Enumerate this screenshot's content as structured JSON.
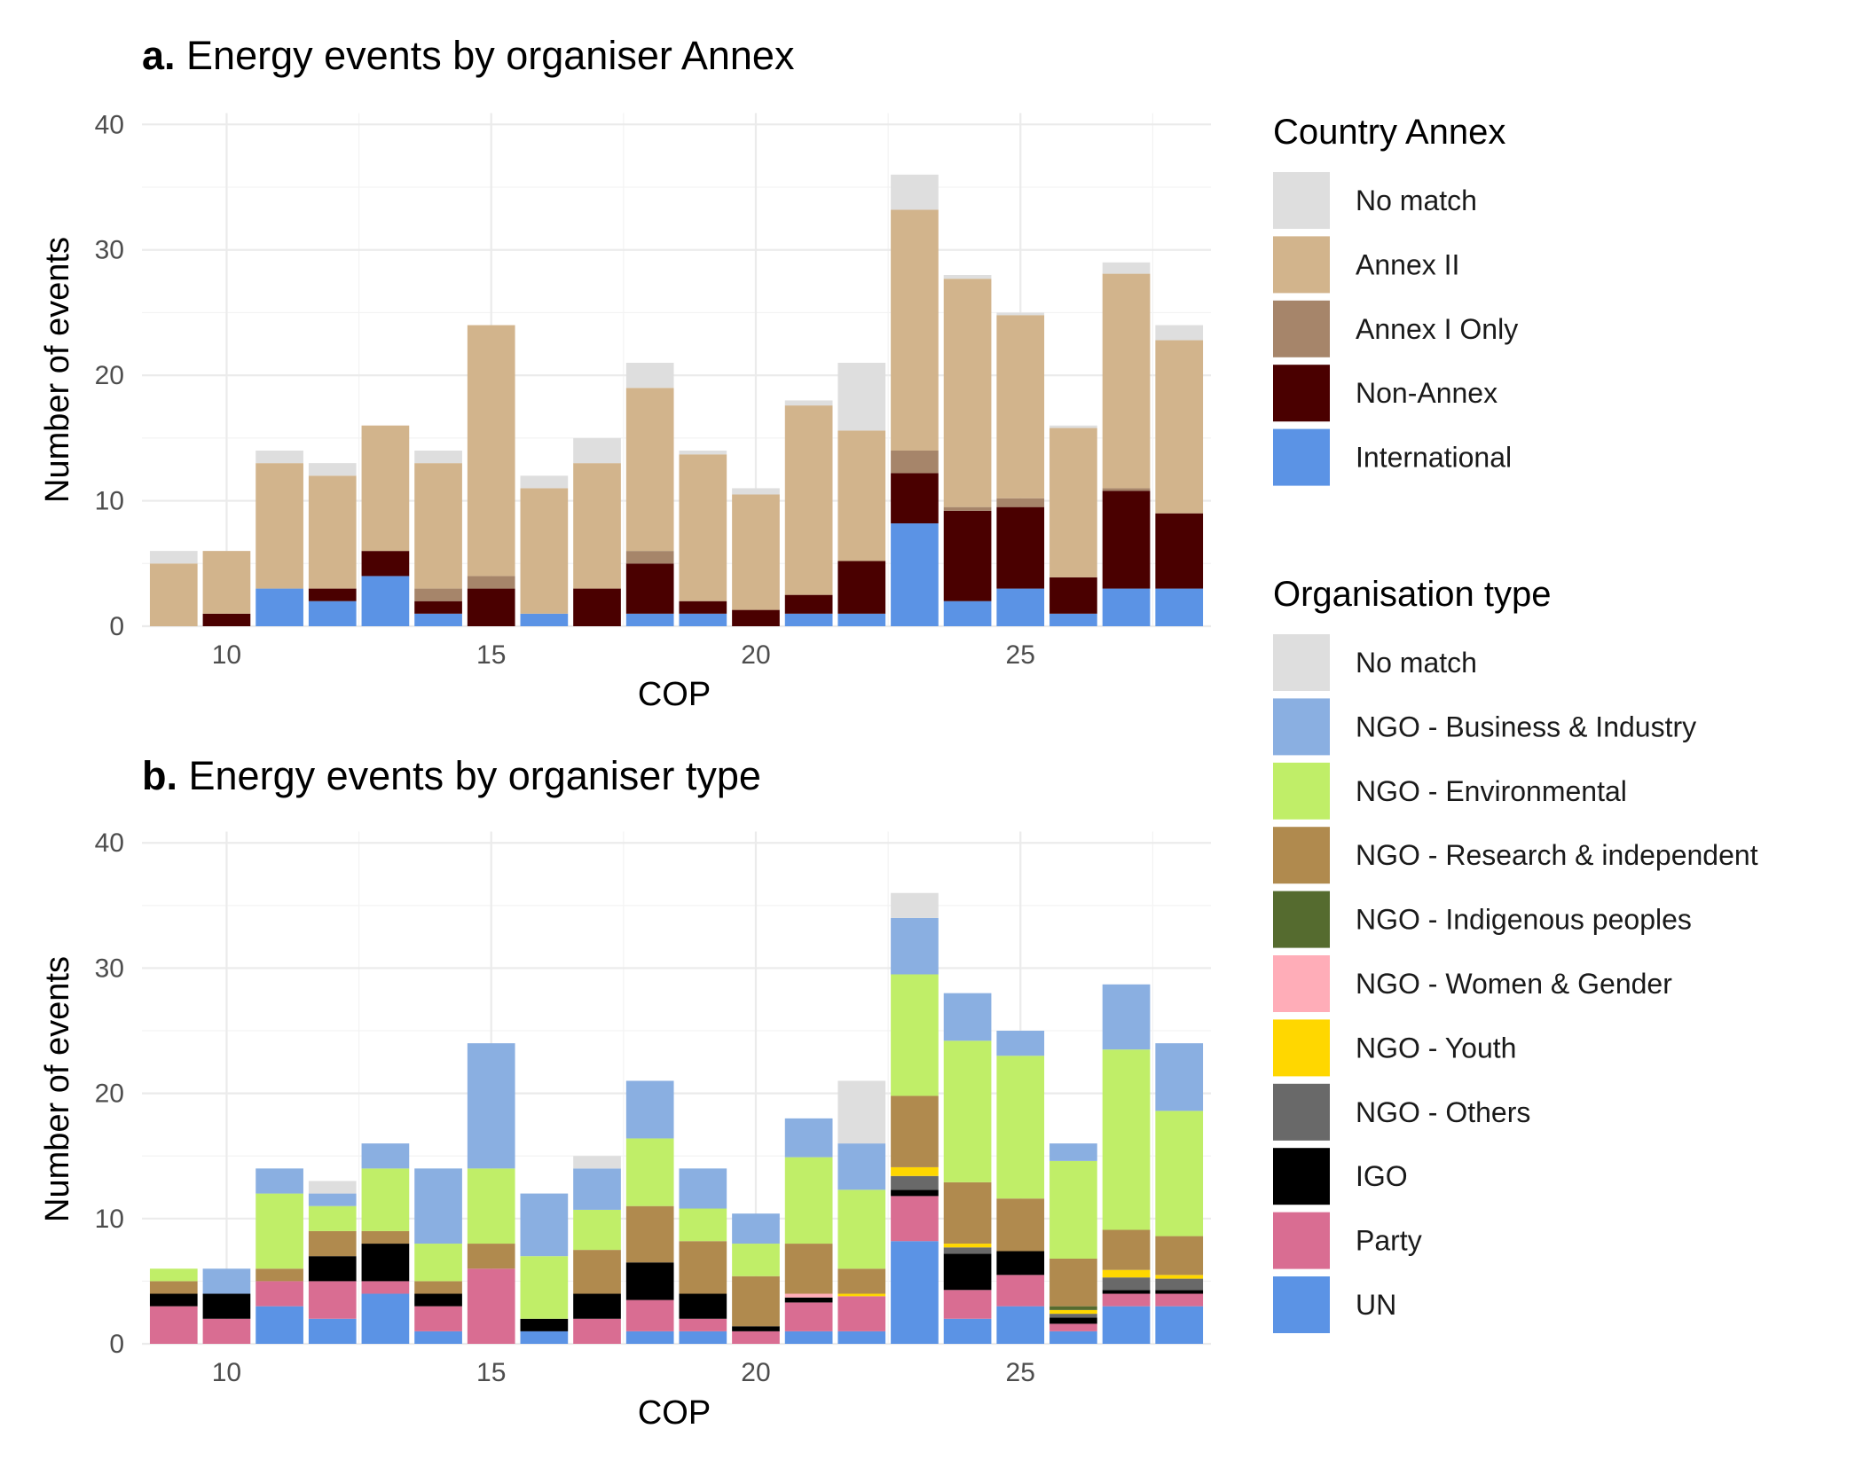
{
  "chart_data": [
    {
      "type": "bar",
      "stacked": true,
      "panel_label": "a.",
      "title": "Energy events by organiser Annex",
      "xlabel": "COP",
      "ylabel": "Number of events",
      "x": [
        9,
        10,
        11,
        12,
        13,
        14,
        15,
        16,
        17,
        18,
        19,
        20,
        21,
        22,
        23,
        24,
        25,
        26,
        27,
        28
      ],
      "xticks": [
        10,
        15,
        20,
        25
      ],
      "xlim": [
        8.4,
        28.6
      ],
      "yticks": [
        0,
        10,
        20,
        30,
        40
      ],
      "ylim": [
        0,
        42
      ],
      "grid": true,
      "legend_position": "right",
      "legend_title": "Country Annex",
      "series": [
        {
          "name": "International",
          "color": "#5b93e5",
          "values": [
            0,
            0,
            3,
            2,
            4,
            1,
            0,
            1,
            0,
            1,
            1,
            0,
            1,
            1,
            8.2,
            2,
            3,
            1,
            3,
            3
          ]
        },
        {
          "name": "Non-Annex",
          "color": "#4a0000",
          "values": [
            0,
            1,
            0,
            1,
            2,
            1,
            3,
            0,
            3,
            4,
            1,
            1.3,
            1.5,
            4.2,
            4,
            7.2,
            6.5,
            2.9,
            7.8,
            6
          ]
        },
        {
          "name": "Annex I Only",
          "color": "#a6856a",
          "values": [
            0,
            0,
            0,
            0,
            0,
            1,
            1,
            0,
            0,
            1,
            0,
            0,
            0,
            0,
            1.8,
            0.3,
            0.7,
            0,
            0.2,
            0
          ]
        },
        {
          "name": "Annex II",
          "color": "#d2b48c",
          "values": [
            5,
            5,
            10,
            9,
            10,
            10,
            20,
            10,
            10,
            13,
            11.7,
            9.2,
            15.1,
            10.4,
            19.2,
            18.2,
            14.6,
            11.9,
            17.1,
            13.8
          ]
        },
        {
          "name": "No match",
          "color": "#dedede",
          "values": [
            1,
            0,
            1,
            1,
            0,
            1,
            0,
            1,
            2,
            2,
            0.3,
            0.5,
            0.4,
            5.4,
            2.8,
            0.3,
            0.2,
            0.2,
            0.9,
            1.2
          ]
        }
      ]
    },
    {
      "type": "bar",
      "stacked": true,
      "panel_label": "b.",
      "title": "Energy events by organiser type",
      "xlabel": "COP",
      "ylabel": "Number of events",
      "x": [
        9,
        10,
        11,
        12,
        13,
        14,
        15,
        16,
        17,
        18,
        19,
        20,
        21,
        22,
        23,
        24,
        25,
        26,
        27,
        28
      ],
      "xticks": [
        10,
        15,
        20,
        25
      ],
      "xlim": [
        8.4,
        28.6
      ],
      "yticks": [
        0,
        10,
        20,
        30,
        40
      ],
      "ylim": [
        0,
        42
      ],
      "grid": true,
      "legend_position": "right",
      "legend_title": "Organisation type",
      "series": [
        {
          "name": "UN",
          "color": "#5b93e5",
          "values": [
            0,
            0,
            3,
            2,
            4,
            1,
            0,
            1,
            0,
            1,
            1,
            0,
            1,
            1,
            8.2,
            2,
            3,
            1,
            3,
            3
          ]
        },
        {
          "name": "Party",
          "color": "#d96d92",
          "values": [
            3,
            2,
            2,
            3,
            1,
            2,
            6,
            0,
            2,
            2.5,
            1,
            1,
            2.3,
            2.8,
            3.6,
            2.3,
            2.5,
            0.6,
            1,
            1
          ]
        },
        {
          "name": "IGO",
          "color": "#000000",
          "values": [
            1,
            2,
            0,
            2,
            3,
            1,
            0,
            1,
            2,
            3,
            2,
            0.4,
            0.4,
            0,
            0.5,
            2.9,
            1.9,
            0.5,
            0.3,
            0.3
          ]
        },
        {
          "name": "NGO - Others",
          "color": "#696969",
          "values": [
            0,
            0,
            0,
            0,
            0,
            0,
            0,
            0,
            0,
            0,
            0,
            0,
            0,
            0,
            1.1,
            0.5,
            0,
            0.3,
            1,
            0.9
          ]
        },
        {
          "name": "NGO - Youth",
          "color": "#ffd700",
          "values": [
            0,
            0,
            0,
            0,
            0,
            0,
            0,
            0,
            0,
            0,
            0,
            0,
            0,
            0.2,
            0.7,
            0.3,
            0,
            0.3,
            0.6,
            0.3
          ]
        },
        {
          "name": "NGO - Women & Gender",
          "color": "#ffadb8",
          "values": [
            0,
            0,
            0,
            0,
            0,
            0,
            0,
            0,
            0,
            0,
            0,
            0,
            0.3,
            0,
            0,
            0,
            0,
            0,
            0,
            0
          ]
        },
        {
          "name": "NGO - Indigenous peoples",
          "color": "#556b2f",
          "values": [
            0,
            0,
            0,
            0,
            0,
            0,
            0,
            0,
            0,
            0,
            0,
            0,
            0,
            0,
            0,
            0,
            0,
            0.3,
            0,
            0
          ]
        },
        {
          "name": "NGO - Research & independent",
          "color": "#b08a4e",
          "values": [
            1,
            0,
            1,
            2,
            1,
            1,
            2,
            0,
            3.5,
            4.5,
            4.2,
            4,
            4,
            2,
            5.7,
            4.9,
            4.2,
            3.8,
            3.2,
            3.1
          ]
        },
        {
          "name": "NGO - Environmental",
          "color": "#c0ee68",
          "values": [
            1,
            0,
            6,
            2,
            5,
            3,
            6,
            5,
            3.2,
            5.4,
            2.6,
            2.6,
            6.9,
            6.3,
            9.7,
            11.3,
            11.4,
            7.8,
            14.4,
            10
          ]
        },
        {
          "name": "NGO - Business & Industry",
          "color": "#8aafe1",
          "values": [
            0,
            2,
            2,
            1,
            2,
            6,
            10,
            5,
            3.3,
            4.6,
            3.2,
            2.4,
            3.1,
            3.7,
            4.5,
            3.8,
            2,
            1.4,
            5.2,
            5.4
          ]
        },
        {
          "name": "No match",
          "color": "#dedede",
          "values": [
            0,
            0,
            0,
            1,
            0,
            0,
            0,
            0,
            1,
            0,
            0,
            0,
            0,
            5,
            2,
            0,
            0,
            0,
            0,
            0
          ]
        }
      ]
    }
  ],
  "legend_a": {
    "title": "Country Annex",
    "items": [
      {
        "label": "No match",
        "color": "#dedede"
      },
      {
        "label": "Annex II",
        "color": "#d2b48c"
      },
      {
        "label": "Annex I Only",
        "color": "#a6856a"
      },
      {
        "label": "Non-Annex",
        "color": "#4a0000"
      },
      {
        "label": "International",
        "color": "#5b93e5"
      }
    ]
  },
  "legend_b": {
    "title": "Organisation type",
    "items": [
      {
        "label": "No match",
        "color": "#dedede"
      },
      {
        "label": "NGO - Business & Industry",
        "color": "#8aafe1"
      },
      {
        "label": "NGO - Environmental",
        "color": "#c0ee68"
      },
      {
        "label": "NGO - Research & independent",
        "color": "#b08a4e"
      },
      {
        "label": "NGO - Indigenous peoples",
        "color": "#556b2f"
      },
      {
        "label": "NGO - Women & Gender",
        "color": "#ffadb8"
      },
      {
        "label": "NGO - Youth",
        "color": "#ffd700"
      },
      {
        "label": "NGO - Others",
        "color": "#696969"
      },
      {
        "label": "IGO",
        "color": "#000000"
      },
      {
        "label": "Party",
        "color": "#d96d92"
      },
      {
        "label": "UN",
        "color": "#5b93e5"
      }
    ]
  }
}
